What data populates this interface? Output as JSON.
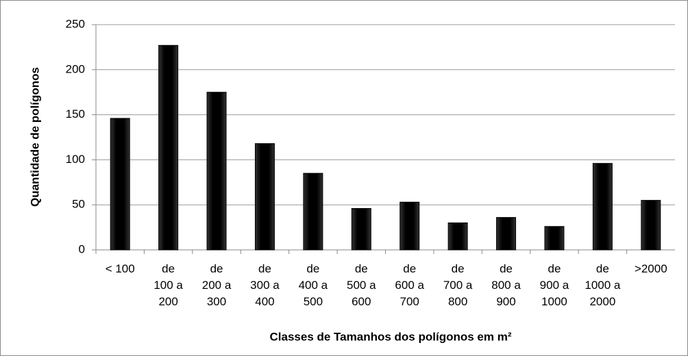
{
  "chart_data": {
    "type": "bar",
    "x_label": "Classes de Tamanhos dos polígonos em m²",
    "y_label": "Quantidade de polígonos",
    "categories": [
      "< 100",
      "de\n100 a\n200",
      "de\n200 a\n300",
      "de\n300 a\n400",
      "de\n400 a\n500",
      "de\n500 a\n600",
      "de\n600 a\n700",
      "de\n700 a\n800",
      "de\n800 a\n900",
      "de\n900 a\n1000",
      "de\n1000 a\n2000",
      ">2000"
    ],
    "values": [
      146,
      227,
      175,
      118,
      85,
      46,
      53,
      30,
      36,
      26,
      96,
      55
    ],
    "color": "#000000",
    "ylim": [
      0,
      250
    ],
    "yticks": [
      0,
      50,
      100,
      150,
      200,
      250
    ],
    "grid": true
  }
}
